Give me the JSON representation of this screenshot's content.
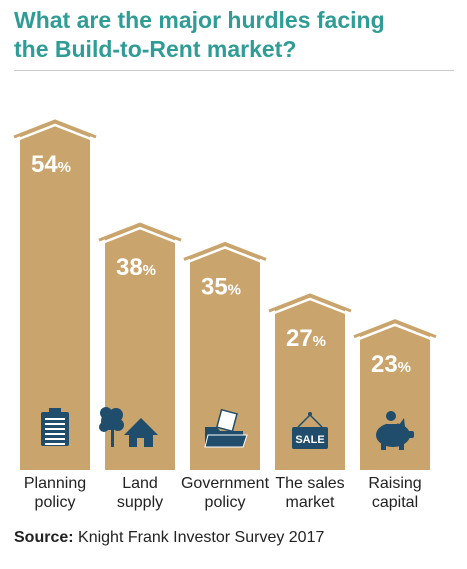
{
  "title": {
    "line1": "What are the major hurdles facing",
    "line2": "the Build-to-Rent market?"
  },
  "colors": {
    "title": "#2f9c95",
    "bar": "#c9a46c",
    "roof_stroke": "#ffffff",
    "value_text": "#ffffff",
    "icon": "#1f4d6b",
    "label_text": "#222222"
  },
  "chart_data": {
    "type": "bar",
    "categories": [
      [
        "Planning",
        "policy"
      ],
      [
        "Land",
        "supply"
      ],
      [
        "Government",
        "policy"
      ],
      [
        "The sales",
        "market"
      ],
      [
        "Raising",
        "capital"
      ]
    ],
    "values": [
      54,
      38,
      35,
      27,
      23
    ],
    "value_suffix": "%",
    "icons": [
      "clipboard-icon",
      "house-tree-icon",
      "folder-icon",
      "sale-sign-icon",
      "piggy-bank-icon"
    ],
    "icon_text": [
      "",
      "",
      "",
      "SALE",
      ""
    ],
    "bar_style": "house-shaped",
    "grid": false,
    "legend": "none"
  },
  "source": {
    "label": "Source:",
    "text": " Knight Frank Investor Survey 2017"
  }
}
